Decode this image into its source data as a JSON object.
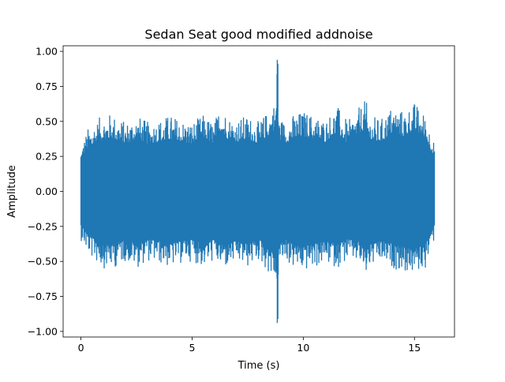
{
  "chart_data": {
    "type": "line",
    "title": "Sedan Seat good modified addnoise",
    "xlabel": "Time (s)",
    "ylabel": "Amplitude",
    "xlim": [
      -0.8,
      16.8
    ],
    "ylim": [
      -1.04,
      1.04
    ],
    "xticks": [
      0,
      5,
      10,
      15
    ],
    "xtick_labels": [
      "0",
      "5",
      "10",
      "15"
    ],
    "yticks": [
      -1.0,
      -0.75,
      -0.5,
      -0.25,
      0.0,
      0.25,
      0.5,
      0.75,
      1.0
    ],
    "ytick_labels": [
      "−1.00",
      "−0.75",
      "−0.50",
      "−0.25",
      "0.00",
      "0.25",
      "0.50",
      "0.75",
      "1.00"
    ],
    "grid": false,
    "legend": "none",
    "series": [
      {
        "color": "#1f77b4",
        "x": [
          0.0,
          0.3,
          0.6,
          1.0,
          1.4,
          2.0,
          2.5,
          3.0,
          3.5,
          4.0,
          4.5,
          5.0,
          5.5,
          6.0,
          6.3,
          6.6,
          7.0,
          7.5,
          8.0,
          8.5,
          8.75,
          8.83,
          8.9,
          9.2,
          9.5,
          10.0,
          10.5,
          11.0,
          11.5,
          12.0,
          12.5,
          12.8,
          13.0,
          13.5,
          14.0,
          14.5,
          15.0,
          15.5,
          15.9
        ],
        "y_max": [
          0.32,
          0.45,
          0.5,
          0.55,
          0.56,
          0.5,
          0.55,
          0.5,
          0.52,
          0.55,
          0.52,
          0.5,
          0.55,
          0.5,
          0.64,
          0.55,
          0.52,
          0.55,
          0.5,
          0.6,
          0.66,
          0.94,
          0.55,
          0.5,
          0.55,
          0.58,
          0.55,
          0.52,
          0.62,
          0.5,
          0.6,
          0.66,
          0.55,
          0.52,
          0.62,
          0.58,
          0.64,
          0.55,
          0.35
        ],
        "y_min": [
          -0.35,
          -0.45,
          -0.5,
          -0.55,
          -0.56,
          -0.5,
          -0.55,
          -0.5,
          -0.52,
          -0.55,
          -0.52,
          -0.5,
          -0.55,
          -0.5,
          -0.56,
          -0.55,
          -0.52,
          -0.55,
          -0.5,
          -0.6,
          -0.66,
          -0.94,
          -0.55,
          -0.5,
          -0.55,
          -0.58,
          -0.55,
          -0.52,
          -0.55,
          -0.5,
          -0.52,
          -0.62,
          -0.55,
          -0.52,
          -0.55,
          -0.58,
          -0.6,
          -0.55,
          -0.35
        ]
      }
    ]
  }
}
